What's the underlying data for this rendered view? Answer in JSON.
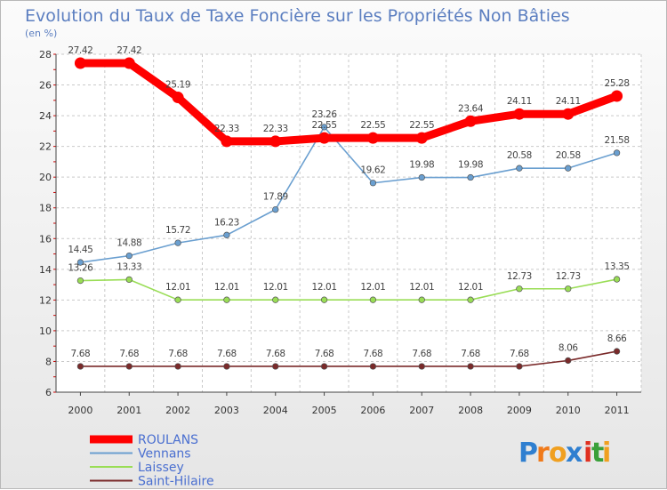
{
  "chart_data": {
    "type": "line",
    "title": "Evolution du Taux de Taxe Foncière sur les Propriétés Non Bâties",
    "subtitle": "(en %)",
    "xlabel": "",
    "ylabel": "",
    "ylim": [
      6,
      28
    ],
    "yticks": [
      6,
      8,
      10,
      12,
      14,
      16,
      18,
      20,
      22,
      24,
      26,
      28
    ],
    "categories": [
      "2000",
      "2001",
      "2002",
      "2003",
      "2004",
      "2005",
      "2006",
      "2007",
      "2008",
      "2009",
      "2010",
      "2011"
    ],
    "grid": true,
    "legend_position": "bottom-left",
    "series": [
      {
        "name": "Saint-Hilaire",
        "color": "#7a2a2a",
        "values": [
          7.68,
          7.68,
          7.68,
          7.68,
          7.68,
          7.68,
          7.68,
          7.68,
          7.68,
          7.68,
          8.06,
          8.66
        ],
        "labels": [
          "7.68",
          "7.68",
          "7.68",
          "7.68",
          "7.68",
          "7.68",
          "7.68",
          "7.68",
          "7.68",
          "7.68",
          "8.06",
          "8.66"
        ]
      },
      {
        "name": "Laissey",
        "color": "#99dd55",
        "values": [
          13.26,
          13.33,
          12.01,
          12.01,
          12.01,
          12.01,
          12.01,
          12.01,
          12.01,
          12.73,
          12.73,
          13.35
        ],
        "labels": [
          "13.26",
          "13.33",
          "12.01",
          "12.01",
          "12.01",
          "12.01",
          "12.01",
          "12.01",
          "12.01",
          "12.73",
          "12.73",
          "13.35"
        ]
      },
      {
        "name": "Vennans",
        "color": "#6a9fd0",
        "values": [
          14.45,
          14.88,
          15.72,
          16.23,
          17.89,
          23.26,
          19.62,
          19.98,
          19.98,
          20.58,
          20.58,
          21.58
        ],
        "labels": [
          "14.45",
          "14.88",
          "15.72",
          "16.23",
          "17.89",
          "23.26",
          "19.62",
          "19.98",
          "19.98",
          "20.58",
          "20.58",
          "21.58"
        ]
      },
      {
        "name": "ROULANS",
        "color": "#ff0000",
        "values": [
          27.42,
          27.42,
          25.19,
          22.33,
          22.33,
          22.55,
          22.55,
          22.55,
          23.64,
          24.11,
          24.11,
          25.28
        ],
        "labels": [
          "27.42",
          "27.42",
          "25.19",
          "22.33",
          "22.33",
          "22.55",
          "22.55",
          "22.55",
          "23.64",
          "24.11",
          "24.11",
          "25.28"
        ]
      }
    ],
    "legend_order": [
      "ROULANS",
      "Vennans",
      "Laissey",
      "Saint-Hilaire"
    ]
  },
  "brand": {
    "text": "Proxiti",
    "letters": [
      "P",
      "r",
      "o",
      "x",
      "i",
      "t",
      "i"
    ],
    "colors": [
      "#2f7fd0",
      "#f07a1a",
      "#f0a020",
      "#2f7fd0",
      "#e03020",
      "#3aa03a",
      "#f0a020"
    ]
  }
}
